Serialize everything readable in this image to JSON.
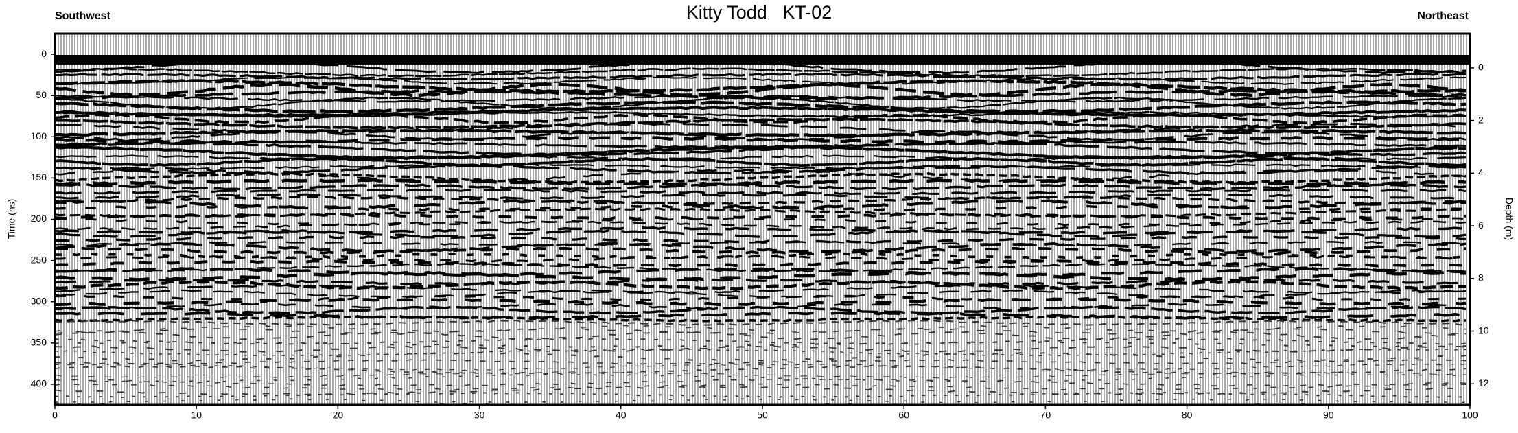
{
  "chart_data": {
    "type": "radargram",
    "title": "Kitty Todd   KT-02",
    "left_label": "Southwest",
    "right_label": "Northeast",
    "ylabel": "Time (ns)",
    "y2label": "Depth (m)",
    "xlim": [
      0,
      100
    ],
    "xticks": [
      0,
      10,
      20,
      30,
      40,
      50,
      60,
      70,
      80,
      90,
      100
    ],
    "ylim": [
      -25,
      425
    ],
    "yticks": [
      0,
      50,
      100,
      150,
      200,
      250,
      300,
      350,
      400
    ],
    "y2lim": [
      -1.3,
      12.8
    ],
    "y2ticks": [
      0,
      2,
      4,
      6,
      8,
      10,
      12
    ],
    "y_inverted": true
  }
}
